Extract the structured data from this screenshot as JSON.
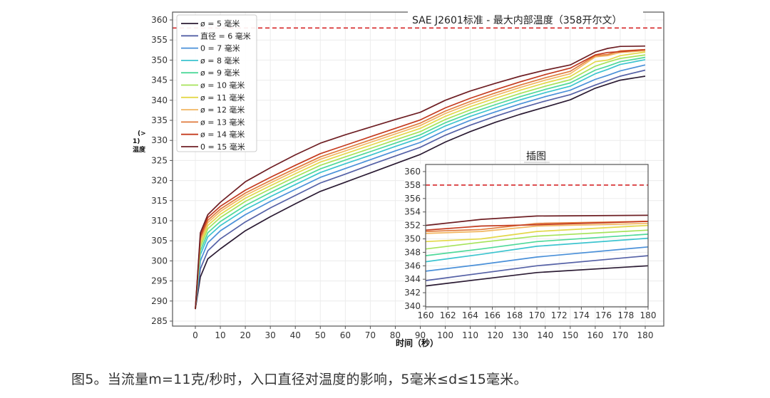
{
  "caption": "图5。当流量m=11克/秒时，入口直径对温度的影响，5毫米≤d≤15毫米。",
  "chart_data": [
    {
      "type": "line",
      "title": "SAE J2601标准 - 最大内部温度（358开尔文）",
      "xlabel": "时间（秒）",
      "ylabel_lines": [
        "(>",
        "1)",
        "温度"
      ],
      "xlim": [
        -10,
        183
      ],
      "ylim": [
        285,
        361
      ],
      "xticks": [
        0,
        10,
        20,
        30,
        40,
        50,
        60,
        70,
        80,
        90,
        100,
        110,
        120,
        130,
        140,
        150,
        160,
        170,
        180
      ],
      "yticks": [
        285,
        290,
        295,
        300,
        305,
        310,
        315,
        320,
        325,
        330,
        335,
        340,
        345,
        350,
        355,
        360
      ],
      "grid": true,
      "legend_position": "top-left",
      "reference_line": {
        "label": "SAE J2601标准 - 最大内部温度（358开尔文）",
        "y": 358,
        "color": "#d62728",
        "style": "dashed"
      },
      "x": [
        0,
        2,
        5,
        10,
        20,
        30,
        40,
        50,
        60,
        70,
        80,
        90,
        100,
        110,
        120,
        130,
        140,
        150,
        160,
        165,
        170,
        180
      ],
      "series": [
        {
          "name": "ø = 5 毫米",
          "color": "#2b1b33",
          "values": [
            288,
            296,
            300.5,
            303,
            307.5,
            311,
            314.2,
            317.3,
            319.6,
            321.9,
            324.2,
            326.5,
            329.6,
            332.2,
            334.5,
            336.5,
            338.3,
            340.1,
            343,
            344,
            345,
            346
          ]
        },
        {
          "name": "直径 = 6 毫米",
          "color": "#5561a6",
          "values": [
            288,
            298,
            302.5,
            305.5,
            309.7,
            313.2,
            316.3,
            319.4,
            321.6,
            323.9,
            326.1,
            328.3,
            331.3,
            333.8,
            336,
            338,
            339.8,
            341.4,
            343.8,
            344.9,
            346,
            347.5
          ]
        },
        {
          "name": "0 = 7 毫米",
          "color": "#4a90d9",
          "values": [
            288,
            300,
            304.5,
            307.5,
            311.5,
            314.8,
            317.8,
            320.8,
            323,
            325.2,
            327.4,
            329.5,
            332.5,
            335,
            337.1,
            339.1,
            340.9,
            342.5,
            345.2,
            346.2,
            347.3,
            348.8
          ]
        },
        {
          "name": "ø = 8 毫米",
          "color": "#3cc4cf",
          "values": [
            288,
            301.5,
            306,
            308.8,
            312.8,
            316,
            319,
            322,
            324.2,
            326.3,
            328.5,
            330.6,
            333.6,
            336,
            338.1,
            340.1,
            341.9,
            343.5,
            346.6,
            347.7,
            348.9,
            350.1
          ]
        },
        {
          "name": "ø = 9 毫米",
          "color": "#4fd99a",
          "values": [
            288,
            302.5,
            307,
            309.8,
            313.8,
            317,
            320,
            322.9,
            325.1,
            327.2,
            329.3,
            331.4,
            334.4,
            336.8,
            338.9,
            340.9,
            342.7,
            344.3,
            347.5,
            348.5,
            349.6,
            350.7
          ]
        },
        {
          "name": "ø = 10 毫米",
          "color": "#a6e35a",
          "values": [
            288,
            303.5,
            308,
            310.8,
            314.8,
            317.9,
            320.9,
            323.8,
            325.9,
            328,
            330.1,
            332.2,
            335.2,
            337.6,
            339.7,
            341.7,
            343.5,
            345.1,
            348.5,
            349.5,
            350.4,
            351.3
          ]
        },
        {
          "name": "ø = 11 毫米",
          "color": "#e3d84a",
          "values": [
            288,
            304.3,
            308.8,
            311.6,
            315.6,
            318.7,
            321.7,
            324.6,
            326.7,
            328.8,
            330.9,
            333,
            336,
            338.4,
            340.5,
            342.5,
            344.3,
            345.9,
            349.6,
            350,
            351.1,
            352
          ]
        },
        {
          "name": "ø = 12 毫米",
          "color": "#f2b661",
          "values": [
            288,
            305,
            309.5,
            312.3,
            316.3,
            319.4,
            322.4,
            325.3,
            327.4,
            329.5,
            331.6,
            333.7,
            336.7,
            339.1,
            341.2,
            343.2,
            345,
            346.6,
            350.8,
            351.1,
            351.9,
            352.3
          ]
        },
        {
          "name": "ø = 13 毫米",
          "color": "#e07a3c",
          "values": [
            288,
            305.6,
            310.1,
            312.9,
            316.9,
            320,
            323,
            325.9,
            328,
            330.1,
            332.2,
            334.3,
            337.3,
            339.7,
            341.8,
            343.8,
            345.6,
            347.2,
            351.1,
            351.4,
            352.3,
            352.6
          ]
        },
        {
          "name": "ø = 14 毫米",
          "color": "#c43b1f",
          "values": [
            288,
            306.2,
            310.8,
            313.6,
            317.6,
            320.8,
            323.8,
            326.7,
            328.8,
            330.9,
            333,
            335.1,
            338.1,
            340.5,
            342.6,
            344.6,
            346.4,
            348,
            351.3,
            351.9,
            352.1,
            352.6
          ]
        },
        {
          "name": "0 = 15 毫米",
          "color": "#6e1f24",
          "values": [
            288,
            307,
            311.5,
            314.6,
            319.7,
            323.2,
            326.4,
            329.3,
            331.4,
            333.3,
            335.2,
            337,
            340,
            342.3,
            344.2,
            346,
            347.5,
            348.8,
            352,
            352.9,
            353.4,
            353.5
          ]
        }
      ]
    },
    {
      "type": "line",
      "title": "插图",
      "xlim": [
        160,
        180
      ],
      "ylim": [
        340,
        361
      ],
      "xticks": [
        160,
        162,
        164,
        166,
        168,
        170,
        172,
        174,
        176,
        178,
        180
      ],
      "yticks": [
        340,
        342,
        344,
        346,
        348,
        350,
        352,
        354,
        356,
        358,
        360
      ],
      "grid": true,
      "reference_line": {
        "y": 358,
        "color": "#d62728",
        "style": "dashed"
      },
      "x": [
        160,
        165,
        170,
        180
      ],
      "series_ref": "same series as main chart, zoomed to 160–180 s"
    }
  ]
}
